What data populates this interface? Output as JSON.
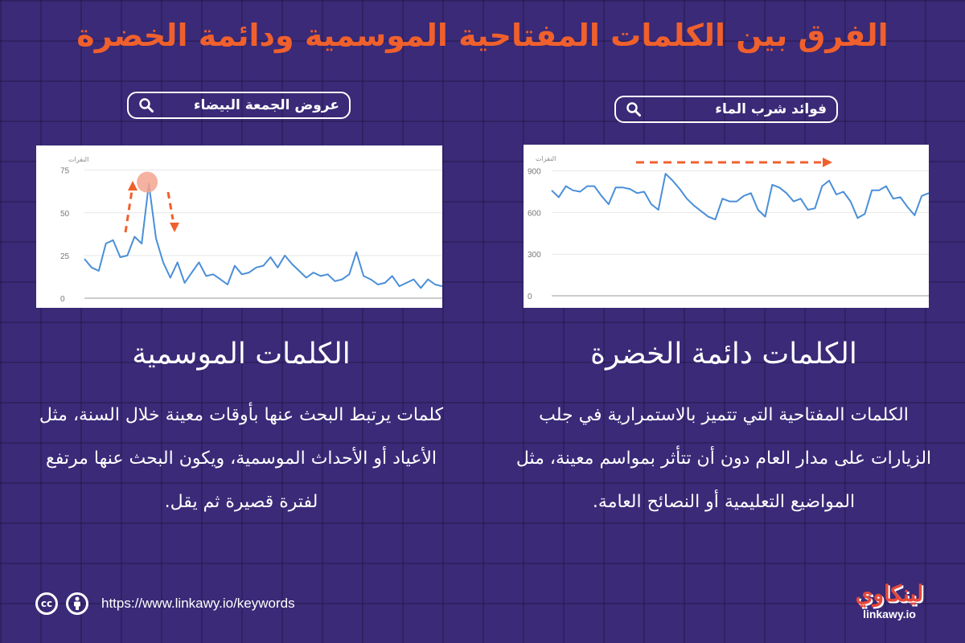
{
  "title": "الفرق بين الكلمات المفتاحية الموسمية ودائمة الخضرة",
  "colors": {
    "title": "#f0602c",
    "line": "#4a8fd9",
    "arrow": "#f0602c",
    "background": "#3a2a78"
  },
  "evergreen": {
    "search_query": "فوائد شرب الماء",
    "heading": "الكلمات دائمة الخضرة",
    "description": "الكلمات المفتاحية التي تتميز بالاستمرارية في جلب الزيارات على مدار العام دون أن تتأثر بمواسم معينة، مثل المواضيع التعليمية أو النصائح العامة."
  },
  "seasonal": {
    "search_query": "عروض الجمعة البيضاء",
    "heading": "الكلمات الموسمية",
    "description": "كلمات يرتبط البحث عنها بأوقات معينة خلال السنة، مثل الأعياد أو الأحداث الموسمية، ويكون البحث عنها مرتفع لفترة قصيرة ثم يقل."
  },
  "chart_data": [
    {
      "type": "line",
      "ylabel": "النقرات",
      "ylim": [
        0,
        950
      ],
      "yticks": [
        0,
        300,
        600,
        900
      ],
      "grid": true,
      "annotation": "trend arrow pointing right",
      "series": [
        {
          "values": [
            760,
            710,
            790,
            760,
            750,
            790,
            790,
            720,
            660,
            780,
            780,
            770,
            740,
            750,
            660,
            620,
            880,
            830,
            770,
            700,
            650,
            610,
            570,
            550,
            700,
            680,
            680,
            720,
            740,
            620,
            570,
            800,
            780,
            740,
            680,
            700,
            620,
            630,
            790,
            830,
            730,
            750,
            680,
            560,
            590,
            760,
            760,
            790,
            700,
            710,
            640,
            580,
            720,
            740
          ]
        }
      ]
    },
    {
      "type": "line",
      "ylabel": "النقرات",
      "ylim": [
        0,
        80
      ],
      "yticks": [
        0,
        25,
        50,
        75
      ],
      "grid": true,
      "annotation": "peak highlighted with up and down arrows",
      "series": [
        {
          "values": [
            23,
            18,
            16,
            32,
            34,
            24,
            25,
            36,
            32,
            67,
            35,
            21,
            12,
            21,
            9,
            15,
            21,
            13,
            14,
            11,
            8,
            19,
            14,
            15,
            18,
            19,
            24,
            18,
            25,
            20,
            16,
            12,
            15,
            13,
            14,
            10,
            11,
            14,
            27,
            13,
            11,
            8,
            9,
            13,
            7,
            9,
            11,
            6,
            11,
            8,
            7
          ]
        }
      ],
      "peak_index": 9
    }
  ],
  "footer": {
    "url": "https://www.linkawy.io/keywords",
    "cc_label": "cc",
    "by_label": ""
  },
  "logo": {
    "arabic": "لينكاوي",
    "latin": "linkawy.io"
  }
}
